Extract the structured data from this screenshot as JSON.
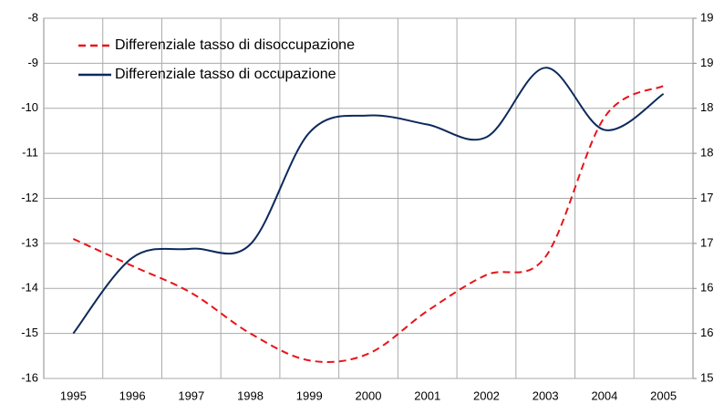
{
  "chart_data": {
    "type": "line",
    "categories": [
      "1995",
      "1996",
      "1997",
      "1998",
      "1999",
      "2000",
      "2001",
      "2002",
      "2003",
      "2004",
      "2005"
    ],
    "series": [
      {
        "name": "Differenziale tasso di disoccupazione",
        "color": "#e8141b",
        "dashed": true,
        "values": [
          -12.9,
          -13.5,
          -14.1,
          -15.0,
          -15.6,
          -15.45,
          -14.5,
          -13.7,
          -13.3,
          -10.2,
          -9.5
        ]
      },
      {
        "name": "Differenziale tasso di occupazione",
        "color": "#0d2a5c",
        "axis": "y2",
        "values": [
          15.5,
          16.34,
          16.44,
          16.49,
          17.73,
          17.92,
          17.82,
          17.68,
          18.45,
          17.76,
          18.16
        ]
      }
    ],
    "ylim": [
      -16,
      -8
    ],
    "yticks": [
      -16,
      -15,
      -14,
      -13,
      -12,
      -11,
      -10,
      -9,
      -8
    ],
    "y2lim": [
      15,
      19
    ],
    "y2ticks": [
      15,
      {
        "value": 15.5,
        "label": "16"
      },
      16,
      {
        "value": 16.5,
        "label": "17"
      },
      17,
      {
        "value": 17.5,
        "label": "18"
      },
      18,
      {
        "value": 18.5,
        "label": "19"
      },
      19
    ],
    "grid": true,
    "legend": "top-left"
  }
}
